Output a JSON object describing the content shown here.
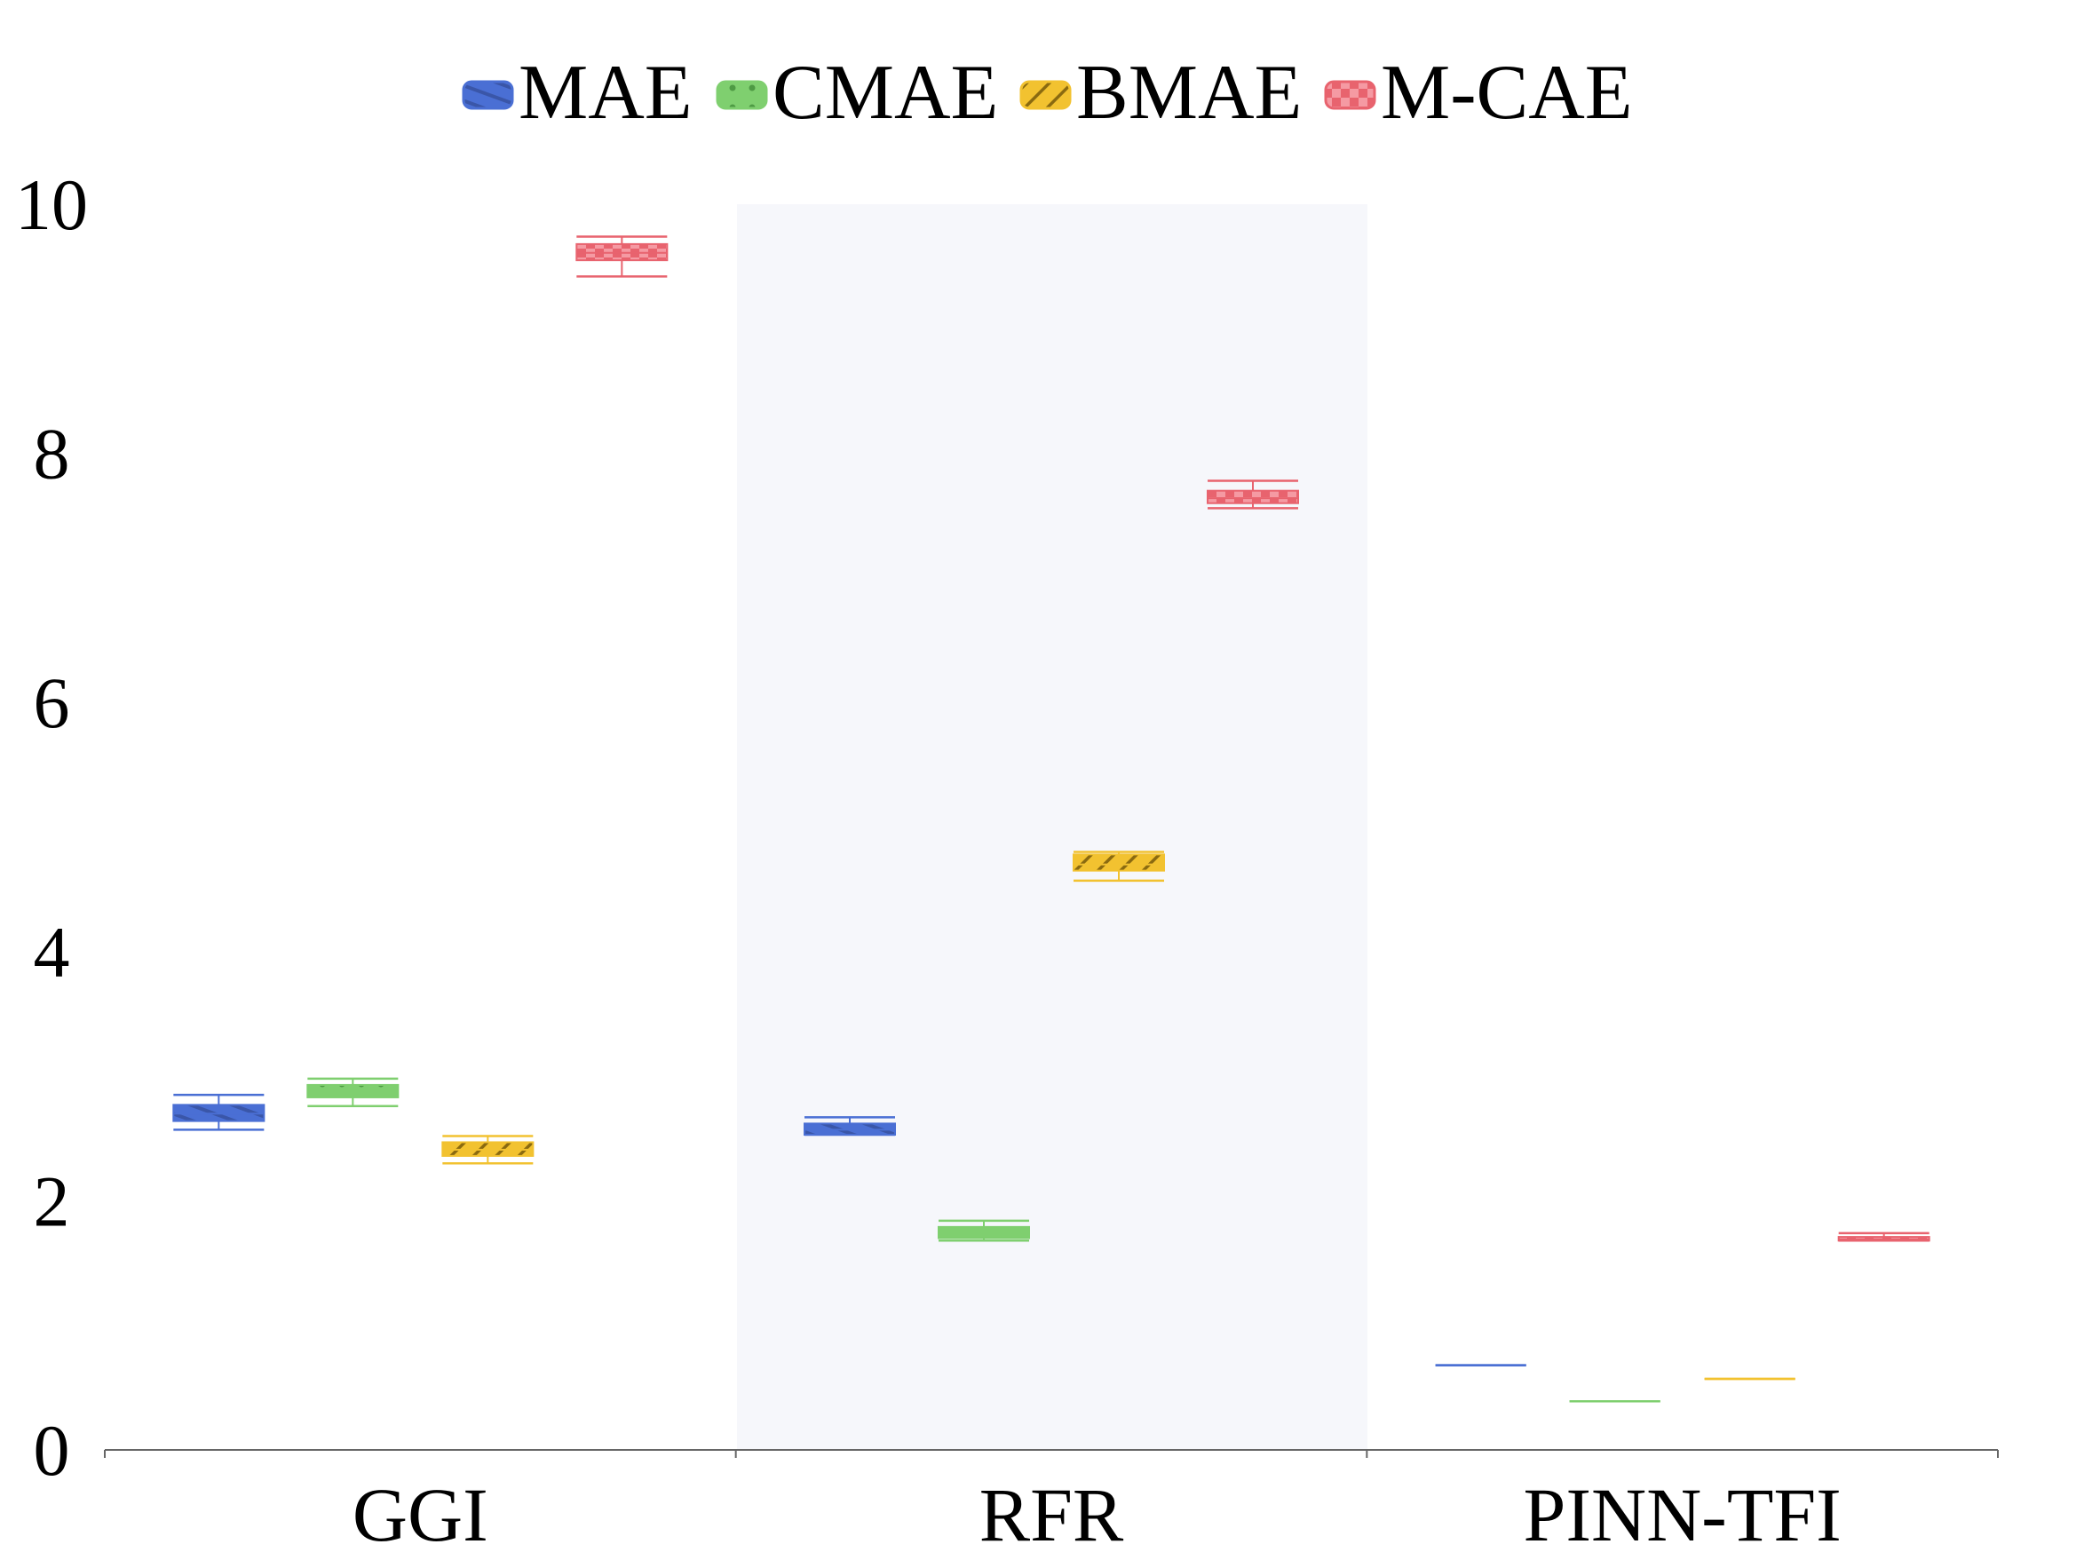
{
  "chart_data": {
    "type": "boxplot",
    "categories": [
      "GGI",
      "RFR",
      "PINN-TFI"
    ],
    "ylim": [
      0,
      10
    ],
    "yticks": [
      0,
      2,
      4,
      6,
      8,
      10
    ],
    "ytick_labels": [
      "0",
      "2",
      "4",
      "6",
      "8",
      "10"
    ],
    "legend_position": "top-center",
    "band_shading": "middle-category",
    "colors": {
      "MAE": "#4a6fd4",
      "CMAE": "#7fcf6f",
      "BMAE": "#f2c230",
      "M-CAE": "#e8636e",
      "band": "#f6f7fb",
      "axis": "#666666"
    },
    "series": [
      {
        "name": "MAE",
        "boxes": [
          {
            "min": 2.57,
            "q1": 2.64,
            "median": 2.7,
            "q3": 2.77,
            "max": 2.85
          },
          {
            "min": 2.53,
            "q1": 2.53,
            "median": 2.57,
            "q3": 2.62,
            "max": 2.67
          },
          {
            "min": 0.68,
            "q1": 0.68,
            "median": 0.68,
            "q3": 0.68,
            "max": 0.68
          }
        ]
      },
      {
        "name": "CMAE",
        "boxes": [
          {
            "min": 2.76,
            "q1": 2.83,
            "median": 2.88,
            "q3": 2.93,
            "max": 2.98
          },
          {
            "min": 1.68,
            "q1": 1.7,
            "median": 1.74,
            "q3": 1.79,
            "max": 1.84
          },
          {
            "min": 0.39,
            "q1": 0.39,
            "median": 0.39,
            "q3": 0.39,
            "max": 0.39
          }
        ]
      },
      {
        "name": "BMAE",
        "boxes": [
          {
            "min": 2.3,
            "q1": 2.36,
            "median": 2.41,
            "q3": 2.47,
            "max": 2.52
          },
          {
            "min": 4.57,
            "q1": 4.65,
            "median": 4.7,
            "q3": 4.78,
            "max": 4.8
          },
          {
            "min": 0.57,
            "q1": 0.57,
            "median": 0.57,
            "q3": 0.57,
            "max": 0.57
          }
        ]
      },
      {
        "name": "M-CAE",
        "boxes": [
          {
            "min": 9.42,
            "q1": 9.55,
            "median": 9.61,
            "q3": 9.68,
            "max": 9.74
          },
          {
            "min": 7.56,
            "q1": 7.6,
            "median": 7.64,
            "q3": 7.7,
            "max": 7.78
          },
          {
            "min": 1.68,
            "q1": 1.68,
            "median": 1.69,
            "q3": 1.71,
            "max": 1.74
          }
        ]
      }
    ]
  }
}
